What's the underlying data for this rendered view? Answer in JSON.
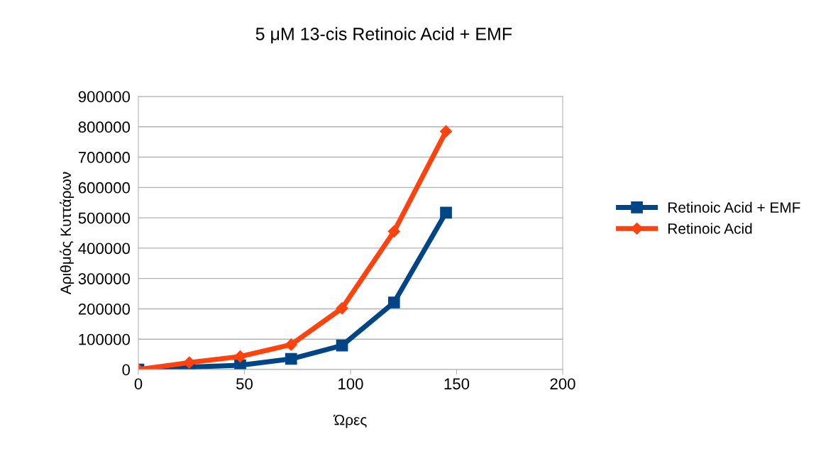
{
  "chart_data": {
    "type": "line",
    "title": "5 μM 13-cis Retinoic Acid + EMF",
    "xlabel": "Ώρες",
    "ylabel": "Αριθμός Κυττάρων",
    "xlim": [
      0,
      200
    ],
    "xticks": [
      0,
      50,
      100,
      150,
      200
    ],
    "ylim": [
      0,
      900000
    ],
    "yticks": [
      0,
      100000,
      200000,
      300000,
      400000,
      500000,
      600000,
      700000,
      800000,
      900000
    ],
    "grid": "y",
    "legend": "right",
    "series": [
      {
        "name": "Retinoic Acid + EMF",
        "color": "#004586",
        "marker": "square",
        "x": [
          0,
          24,
          48,
          72,
          96,
          120.5,
          145
        ],
        "values": [
          0,
          8000,
          14000,
          35000,
          79000,
          221000,
          517000
        ]
      },
      {
        "name": "Retinoic Acid",
        "color": "#ff420e",
        "marker": "diamond",
        "x": [
          0,
          24,
          48,
          72,
          96,
          120.5,
          145
        ],
        "values": [
          0,
          23000,
          43000,
          82000,
          202000,
          455000,
          785000
        ]
      }
    ]
  }
}
